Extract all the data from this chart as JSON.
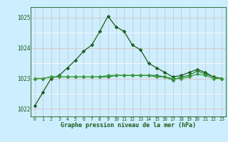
{
  "xlabel": "Graphe pression niveau de la mer (hPa)",
  "hours": [
    0,
    1,
    2,
    3,
    4,
    5,
    6,
    7,
    8,
    9,
    10,
    11,
    12,
    13,
    14,
    15,
    16,
    17,
    18,
    19,
    20,
    21,
    22,
    23
  ],
  "series1": [
    1022.1,
    1022.55,
    1023.0,
    1023.1,
    1023.35,
    1023.6,
    1023.9,
    1024.1,
    1024.55,
    1025.05,
    1024.7,
    1024.55,
    1024.1,
    1023.95,
    1023.5,
    1023.35,
    1023.2,
    1023.05,
    1023.1,
    1023.2,
    1023.3,
    1023.2,
    1023.05,
    1023.0
  ],
  "series2": [
    1023.0,
    1023.0,
    1023.05,
    1023.05,
    1023.05,
    1023.05,
    1023.05,
    1023.05,
    1023.05,
    1023.05,
    1023.1,
    1023.1,
    1023.1,
    1023.1,
    1023.1,
    1023.1,
    1023.05,
    1022.95,
    1023.05,
    1023.1,
    1023.25,
    1023.15,
    1023.05,
    1023.0
  ],
  "series3": [
    1023.0,
    1023.0,
    1023.05,
    1023.05,
    1023.05,
    1023.05,
    1023.05,
    1023.05,
    1023.05,
    1023.1,
    1023.1,
    1023.1,
    1023.1,
    1023.1,
    1023.1,
    1023.05,
    1023.05,
    1023.0,
    1023.0,
    1023.05,
    1023.15,
    1023.1,
    1023.0,
    1023.0
  ],
  "line_color1": "#1a5c1a",
  "line_color2": "#2d7a2d",
  "line_color3": "#3a9a3a",
  "bg_color": "#cceeff",
  "grid_color_major": "#ddbbbb",
  "grid_color_minor": "#ffffff",
  "axis_color": "#1a5c1a",
  "ylim_min": 1021.75,
  "ylim_max": 1025.35,
  "yticks": [
    1022,
    1023,
    1024,
    1025
  ],
  "marker": "D",
  "marker_size": 2.5,
  "linewidth": 0.9
}
